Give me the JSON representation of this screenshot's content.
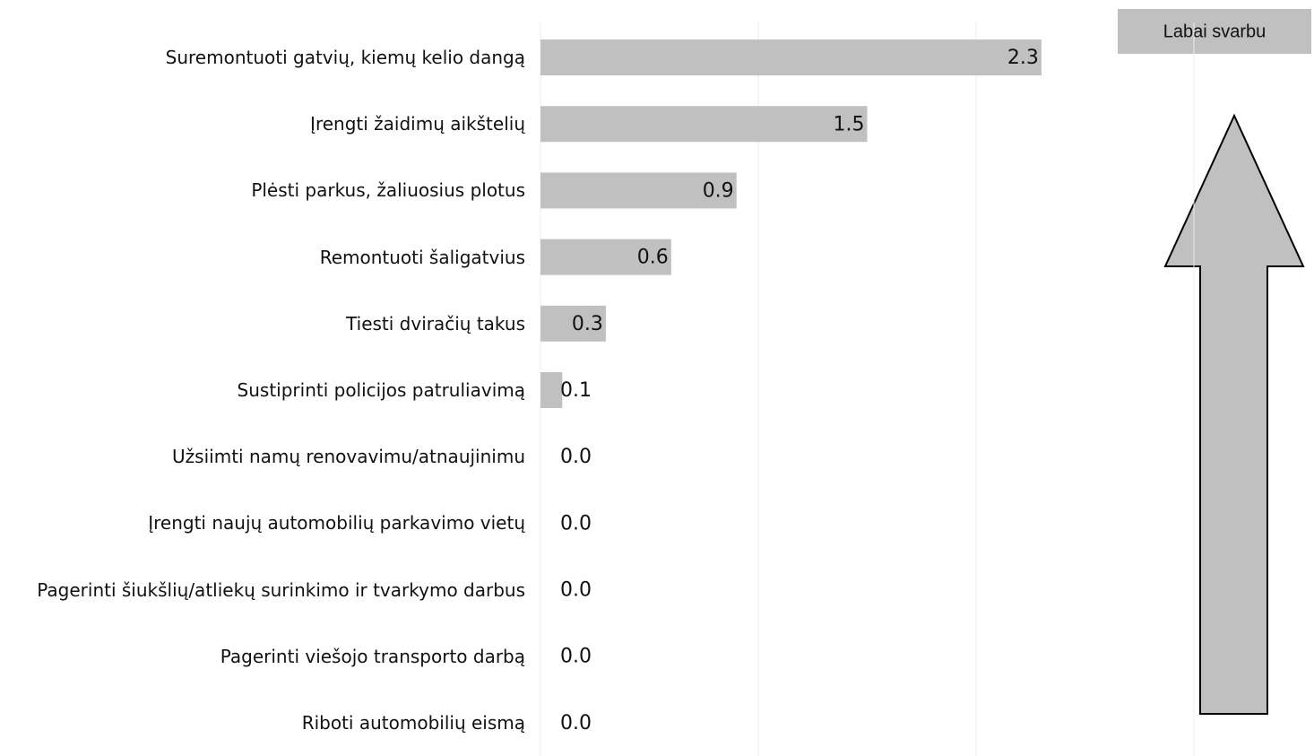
{
  "chart_data": {
    "type": "bar",
    "orientation": "horizontal",
    "categories": [
      "Suremontuoti gatvių, kiemų kelio dangą",
      "Įrengti žaidimų aikštelių",
      "Plėsti parkus, žaliuosius plotus",
      "Remontuoti šaligatvius",
      "Tiesti dviračių takus",
      "Sustiprinti policijos patruliavimą",
      "Užsiimti namų renovavimu/atnaujinimu",
      "Įrengti naujų automobilių parkavimo vietų",
      "Pagerinti šiukšlių/atliekų surinkimo ir tvarkymo darbus",
      "Pagerinti viešojo transporto darbą",
      "Riboti automobilių eismą"
    ],
    "values": [
      2.3,
      1.5,
      0.9,
      0.6,
      0.3,
      0.1,
      0,
      0,
      0,
      0,
      0
    ],
    "value_labels": [
      "2.3",
      "1.5",
      "0.9",
      "0.6",
      "0.3",
      "0.1",
      "0.0",
      "0.0",
      "0.0",
      "0.0",
      "0.0"
    ],
    "color": "#c0c0c0",
    "xlim": [
      0,
      3
    ],
    "xticks": [
      0,
      1,
      2,
      3
    ],
    "grid": true,
    "annotation": "Labai svarbu"
  }
}
